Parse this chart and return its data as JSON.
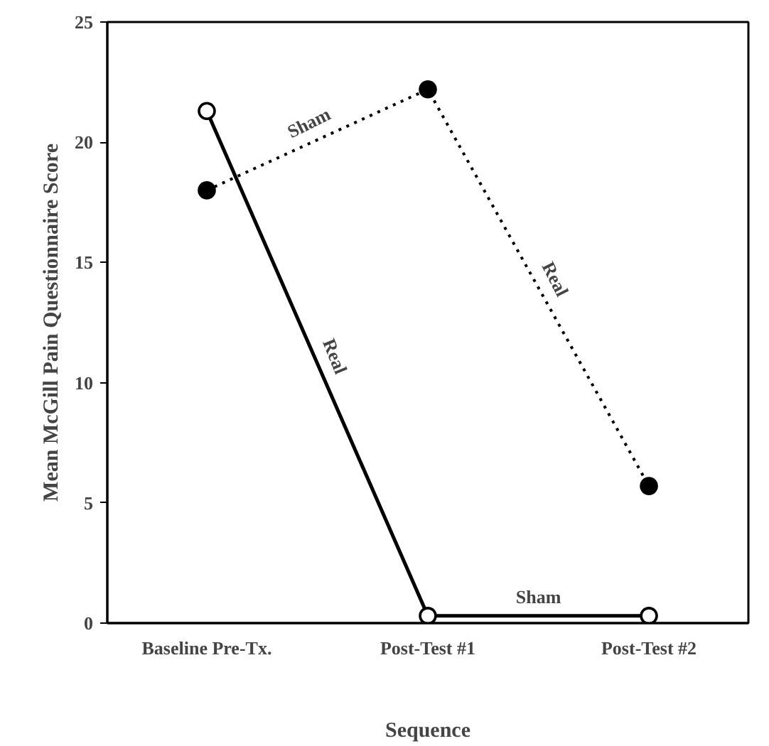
{
  "chart_data": {
    "type": "line",
    "xlabel": "Sequence",
    "ylabel": "Mean McGill Pain Questionnaire Score",
    "categories": [
      "Baseline Pre-Tx.",
      "Post-Test #1",
      "Post-Test #2"
    ],
    "series": [
      {
        "color": "#000000",
        "values": [
          21.3,
          0.3,
          0.3
        ],
        "line_style": "solid",
        "marker": "circle"
      },
      {
        "color": "#000000",
        "values": [
          18,
          22.2,
          5.7
        ],
        "line_style": "dotted",
        "marker": "circle"
      }
    ],
    "ylim": [
      0,
      25
    ],
    "yticks": [
      0,
      5,
      10,
      15,
      20,
      25
    ],
    "grid": false,
    "annotations": [
      "Real",
      "Sham",
      "Real",
      "Sham"
    ]
  }
}
